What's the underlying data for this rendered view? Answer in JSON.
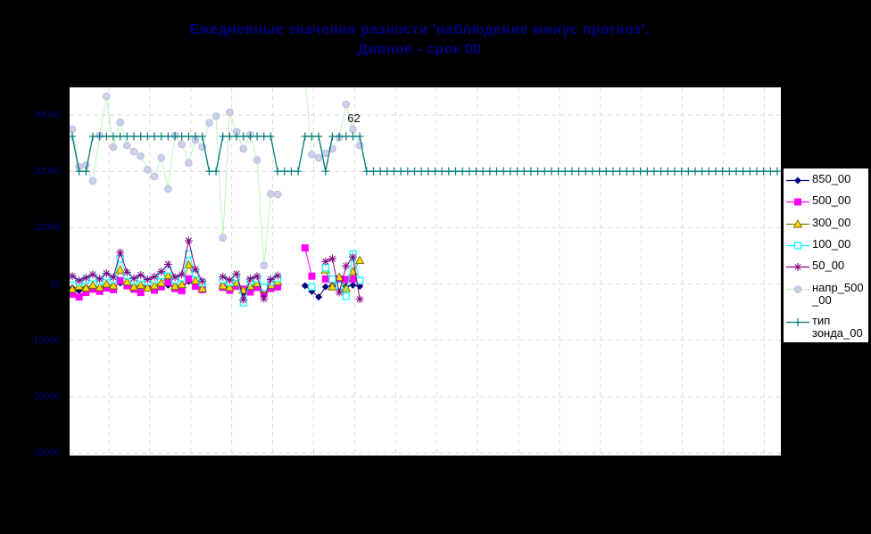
{
  "title": {
    "line1": "Ежедневные значения разности 'наблюдение минус прогноз'.",
    "line2": "Дивное - срок 00",
    "color": "#000080"
  },
  "plot": {
    "background": "#ffffff",
    "grid_color": "#d9d9d9"
  },
  "y_axis": {
    "color": "#000080",
    "labels": [
      "30000",
      "20000",
      "10000",
      "00",
      "-10000",
      "-20000",
      "-30000"
    ]
  },
  "legend": {
    "items": [
      {
        "lines": [
          "850_00"
        ],
        "color": "#000080",
        "marker": "diamond"
      },
      {
        "lines": [
          "500_00"
        ],
        "color": "#ff00ff",
        "marker": "square"
      },
      {
        "lines": [
          "300_00"
        ],
        "color": "#808000",
        "marker": "triangle",
        "marker_color": "#ffd800"
      },
      {
        "lines": [
          "100_00"
        ],
        "color": "#00ffff",
        "marker": "open-square"
      },
      {
        "lines": [
          "50_00"
        ],
        "color": "#800080",
        "marker": "asterisk"
      },
      {
        "lines": [
          "напр_500",
          "_00"
        ],
        "color": "#c0eec0",
        "marker": "circle",
        "marker_color": "#ccd0ea"
      },
      {
        "lines": [
          "тип",
          "зонда_00"
        ],
        "color": "#007b7b",
        "marker": "plus"
      }
    ]
  },
  "chart_data": {
    "type": "line",
    "title": "Ежедневные значения разности 'наблюдение минус прогноз'. Дивное - срок 00",
    "xlabel": "",
    "ylabel": "",
    "x_axis": {
      "labels_visible": false,
      "point_count": 104,
      "gridline_count": 17
    },
    "ylim": [
      -30400,
      34900
    ],
    "y_tick_values": [
      30000,
      20000,
      10000,
      0,
      -10000,
      -20000,
      -30000
    ],
    "grid": true,
    "legend_position": "right",
    "annotation": {
      "text": "62",
      "i": 41,
      "value": 29500
    },
    "series": [
      {
        "name": "850_00",
        "color": "#000080",
        "marker": "diamond",
        "points": [
          [
            0,
            -700
          ],
          [
            1,
            -1200
          ],
          [
            2,
            -600
          ],
          [
            3,
            -400
          ],
          [
            4,
            -800
          ],
          [
            5,
            -300
          ],
          [
            6,
            -500
          ],
          [
            7,
            200
          ],
          [
            8,
            -400
          ],
          [
            9,
            -700
          ],
          [
            10,
            -300
          ],
          [
            11,
            -600
          ],
          [
            12,
            -900
          ],
          [
            13,
            -400
          ],
          [
            14,
            -200
          ],
          [
            15,
            -500
          ],
          [
            16,
            -300
          ],
          [
            17,
            500
          ],
          [
            18,
            -200
          ],
          [
            19,
            -600
          ],
          [
            22,
            -400
          ],
          [
            23,
            -700
          ],
          [
            24,
            -300
          ],
          [
            25,
            -1500
          ],
          [
            26,
            -600
          ],
          [
            27,
            -300
          ],
          [
            28,
            -800
          ],
          [
            29,
            -400
          ],
          [
            30,
            -600
          ],
          [
            34,
            -300
          ],
          [
            35,
            -1300
          ],
          [
            36,
            -2300
          ],
          [
            37,
            -500
          ],
          [
            38,
            -300
          ],
          [
            39,
            -600
          ],
          [
            40,
            -400
          ],
          [
            41,
            -200
          ],
          [
            42,
            -400
          ]
        ]
      },
      {
        "name": "500_00",
        "color": "#ff00ff",
        "marker": "square",
        "points": [
          [
            0,
            -1800
          ],
          [
            1,
            -2300
          ],
          [
            2,
            -1500
          ],
          [
            3,
            -900
          ],
          [
            4,
            -1300
          ],
          [
            5,
            -700
          ],
          [
            6,
            -1000
          ],
          [
            7,
            600
          ],
          [
            8,
            -300
          ],
          [
            9,
            -900
          ],
          [
            10,
            -1500
          ],
          [
            11,
            -700
          ],
          [
            12,
            -1100
          ],
          [
            13,
            -500
          ],
          [
            14,
            300
          ],
          [
            15,
            -800
          ],
          [
            16,
            -1200
          ],
          [
            17,
            900
          ],
          [
            18,
            -400
          ],
          [
            19,
            -1000
          ],
          [
            22,
            -600
          ],
          [
            23,
            -1100
          ],
          [
            24,
            -400
          ],
          [
            25,
            -900
          ],
          [
            26,
            -1400
          ],
          [
            27,
            -600
          ],
          [
            28,
            -1700
          ],
          [
            29,
            -800
          ],
          [
            30,
            -500
          ],
          [
            34,
            6400
          ],
          [
            35,
            1400
          ],
          [
            37,
            900
          ],
          [
            38,
            800
          ],
          [
            39,
            900
          ],
          [
            40,
            800
          ],
          [
            41,
            900
          ],
          [
            42,
            500
          ]
        ]
      },
      {
        "name": "300_00",
        "color": "#808000",
        "marker": "triangle",
        "marker_color": "#ffd800",
        "points": [
          [
            0,
            -900
          ],
          [
            1,
            -400
          ],
          [
            2,
            -700
          ],
          [
            3,
            -200
          ],
          [
            4,
            -600
          ],
          [
            5,
            0
          ],
          [
            6,
            -300
          ],
          [
            7,
            2500
          ],
          [
            8,
            400
          ],
          [
            9,
            -500
          ],
          [
            10,
            -200
          ],
          [
            11,
            -700
          ],
          [
            12,
            -300
          ],
          [
            13,
            200
          ],
          [
            14,
            1500
          ],
          [
            15,
            -400
          ],
          [
            16,
            -100
          ],
          [
            17,
            3400
          ],
          [
            18,
            600
          ],
          [
            19,
            -800
          ],
          [
            22,
            -300
          ],
          [
            23,
            -600
          ],
          [
            24,
            200
          ],
          [
            25,
            -1100
          ],
          [
            26,
            -400
          ],
          [
            27,
            100
          ],
          [
            28,
            -900
          ],
          [
            29,
            -200
          ],
          [
            30,
            400
          ],
          [
            37,
            2500
          ],
          [
            38,
            -500
          ],
          [
            39,
            1200
          ],
          [
            40,
            -800
          ],
          [
            41,
            2200
          ],
          [
            42,
            4200
          ]
        ]
      },
      {
        "name": "100_00",
        "color": "#00ffff",
        "marker": "open-square",
        "points": [
          [
            0,
            900
          ],
          [
            1,
            300
          ],
          [
            2,
            700
          ],
          [
            3,
            1100
          ],
          [
            4,
            500
          ],
          [
            5,
            1300
          ],
          [
            6,
            800
          ],
          [
            7,
            4500
          ],
          [
            8,
            1500
          ],
          [
            9,
            600
          ],
          [
            10,
            1000
          ],
          [
            11,
            400
          ],
          [
            12,
            800
          ],
          [
            13,
            1500
          ],
          [
            14,
            2500
          ],
          [
            15,
            700
          ],
          [
            16,
            1100
          ],
          [
            17,
            5300
          ],
          [
            18,
            1800
          ],
          [
            19,
            200
          ],
          [
            22,
            800
          ],
          [
            23,
            300
          ],
          [
            24,
            1200
          ],
          [
            25,
            -3300
          ],
          [
            26,
            500
          ],
          [
            27,
            900
          ],
          [
            28,
            -600
          ],
          [
            29,
            400
          ],
          [
            30,
            1000
          ],
          [
            35,
            -500
          ],
          [
            37,
            2900
          ],
          [
            38,
            900
          ],
          [
            39,
            -300
          ],
          [
            40,
            -2200
          ],
          [
            41,
            5300
          ],
          [
            42,
            600
          ]
        ]
      },
      {
        "name": "50_00",
        "color": "#800080",
        "marker": "asterisk",
        "points": [
          [
            0,
            1400
          ],
          [
            1,
            600
          ],
          [
            2,
            1100
          ],
          [
            3,
            1700
          ],
          [
            4,
            900
          ],
          [
            5,
            1900
          ],
          [
            6,
            1200
          ],
          [
            7,
            5600
          ],
          [
            8,
            2100
          ],
          [
            9,
            1000
          ],
          [
            10,
            1600
          ],
          [
            11,
            800
          ],
          [
            12,
            1300
          ],
          [
            13,
            2200
          ],
          [
            14,
            3500
          ],
          [
            15,
            1200
          ],
          [
            16,
            1700
          ],
          [
            17,
            7700
          ],
          [
            18,
            2600
          ],
          [
            19,
            500
          ],
          [
            22,
            1300
          ],
          [
            23,
            700
          ],
          [
            24,
            1800
          ],
          [
            25,
            -2800
          ],
          [
            26,
            900
          ],
          [
            27,
            1400
          ],
          [
            28,
            -2600
          ],
          [
            29,
            800
          ],
          [
            30,
            1500
          ],
          [
            37,
            4000
          ],
          [
            38,
            4500
          ],
          [
            39,
            -1500
          ],
          [
            40,
            3200
          ],
          [
            41,
            4800
          ],
          [
            42,
            -2700
          ]
        ]
      },
      {
        "name": "напр_500_00",
        "color": "#c0eec0",
        "marker": "circle",
        "marker_color": "#ccd0ea",
        "points": [
          [
            0,
            27500
          ],
          [
            1,
            20800
          ],
          [
            2,
            21100
          ],
          [
            3,
            18300
          ],
          [
            4,
            26400
          ],
          [
            5,
            33300
          ],
          [
            6,
            24300
          ],
          [
            7,
            28700
          ],
          [
            8,
            24600
          ],
          [
            9,
            23500
          ],
          [
            10,
            22700
          ],
          [
            11,
            20300
          ],
          [
            12,
            19100
          ],
          [
            13,
            22400
          ],
          [
            14,
            16900
          ],
          [
            15,
            26400
          ],
          [
            16,
            24800
          ],
          [
            17,
            21500
          ],
          [
            18,
            25600
          ],
          [
            19,
            24300
          ],
          [
            20,
            28600
          ],
          [
            21,
            29800
          ],
          [
            22,
            8200
          ],
          [
            23,
            30500
          ],
          [
            24,
            27000
          ],
          [
            25,
            24000
          ],
          [
            26,
            26500
          ],
          [
            27,
            22000
          ],
          [
            28,
            3300
          ],
          [
            29,
            16000
          ],
          [
            30,
            15900
          ],
          [
            34,
            36500
          ],
          [
            35,
            23000
          ],
          [
            36,
            22400
          ],
          [
            37,
            23200
          ],
          [
            38,
            24000
          ],
          [
            39,
            26000
          ],
          [
            40,
            31900
          ],
          [
            41,
            27500
          ],
          [
            42,
            24600
          ]
        ]
      },
      {
        "name": "тип зонда_00",
        "color": "#007b7b",
        "marker": "plus",
        "runs": [
          [
            0,
            0,
            26200
          ],
          [
            1,
            2,
            20000
          ],
          [
            3,
            19,
            26200
          ],
          [
            20,
            21,
            20000
          ],
          [
            22,
            29,
            26200
          ],
          [
            30,
            33,
            20000
          ],
          [
            34,
            36,
            26200
          ],
          [
            37,
            37,
            20000
          ],
          [
            38,
            42,
            26200
          ],
          [
            43,
            103,
            20000
          ]
        ]
      }
    ]
  }
}
